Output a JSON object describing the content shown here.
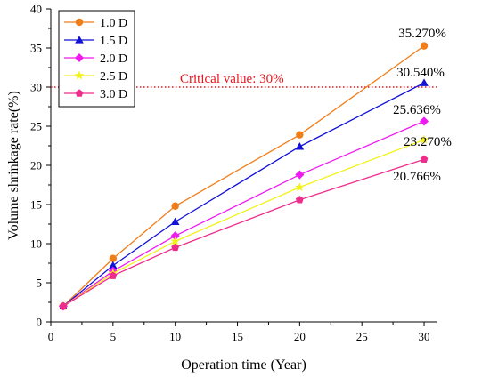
{
  "chart_data": {
    "type": "line",
    "xlabel": "Operation time (Year)",
    "ylabel": "Volume shrinkage rate(%)",
    "xlim": [
      0,
      31
    ],
    "ylim": [
      0,
      40
    ],
    "x_ticks": [
      0,
      5,
      10,
      15,
      20,
      25,
      30
    ],
    "y_ticks": [
      0,
      5,
      10,
      15,
      20,
      25,
      30,
      35,
      40
    ],
    "x": [
      1,
      5,
      10,
      20,
      30
    ],
    "legend_position": "top-left",
    "grid": false,
    "series": [
      {
        "name": "1.0 D",
        "color": "#f07d1a",
        "marker": "circle",
        "values": [
          2.0,
          8.1,
          14.8,
          23.9,
          35.27
        ]
      },
      {
        "name": "1.5 D",
        "color": "#1212d6",
        "marker": "triangle",
        "values": [
          2.0,
          7.2,
          12.8,
          22.4,
          30.54
        ]
      },
      {
        "name": "2.0 D",
        "color": "#f01af0",
        "marker": "diamond",
        "values": [
          2.0,
          6.5,
          11.0,
          18.8,
          25.636
        ]
      },
      {
        "name": "2.5 D",
        "color": "#f2f21a",
        "marker": "star",
        "values": [
          2.0,
          6.2,
          10.3,
          17.2,
          23.27
        ]
      },
      {
        "name": "3.0 D",
        "color": "#ee2c8c",
        "marker": "pentagon",
        "values": [
          2.0,
          5.9,
          9.5,
          15.6,
          20.766
        ]
      }
    ],
    "reference_line": {
      "y": 30,
      "label": "Critical value: 30%",
      "color": "#e8141b"
    },
    "end_labels": [
      "35.270%",
      "30.540%",
      "25.636%",
      "23.270%",
      "20.766%"
    ]
  }
}
